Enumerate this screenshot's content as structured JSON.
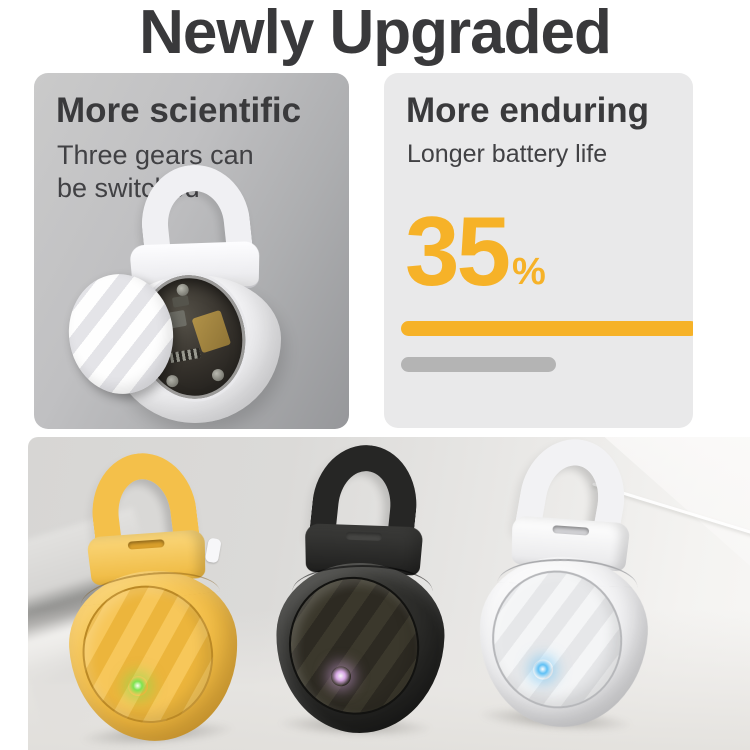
{
  "header": {
    "title": "Newly Upgraded"
  },
  "cards": {
    "scientific": {
      "title": "More scientific",
      "subtitle": "Three gears can be switched"
    },
    "enduring": {
      "title": "More enduring",
      "subtitle": "Longer battery life",
      "stat_value": "35",
      "stat_unit": "%",
      "progress_primary_pct": 96,
      "progress_secondary_pct": 50
    }
  },
  "products": [
    {
      "color_name": "yellow",
      "body_hex": "#F4C04A",
      "led_hex": "#7EE34F"
    },
    {
      "color_name": "black",
      "body_hex": "#262625",
      "led_hex": "#D9A9E6"
    },
    {
      "color_name": "white",
      "body_hex": "#F2F2F4",
      "led_hex": "#5FC0F5"
    }
  ],
  "colors": {
    "accent": "#F6B228",
    "headline_text": "#39393B",
    "body_text": "#3E3E40",
    "left_card_bg": "#B5B6B8",
    "right_card_bg": "#E9E9EA",
    "progress_primary": "#F6B228",
    "progress_secondary": "#B4B4B4",
    "photo_bg": "#DCDBD9"
  }
}
